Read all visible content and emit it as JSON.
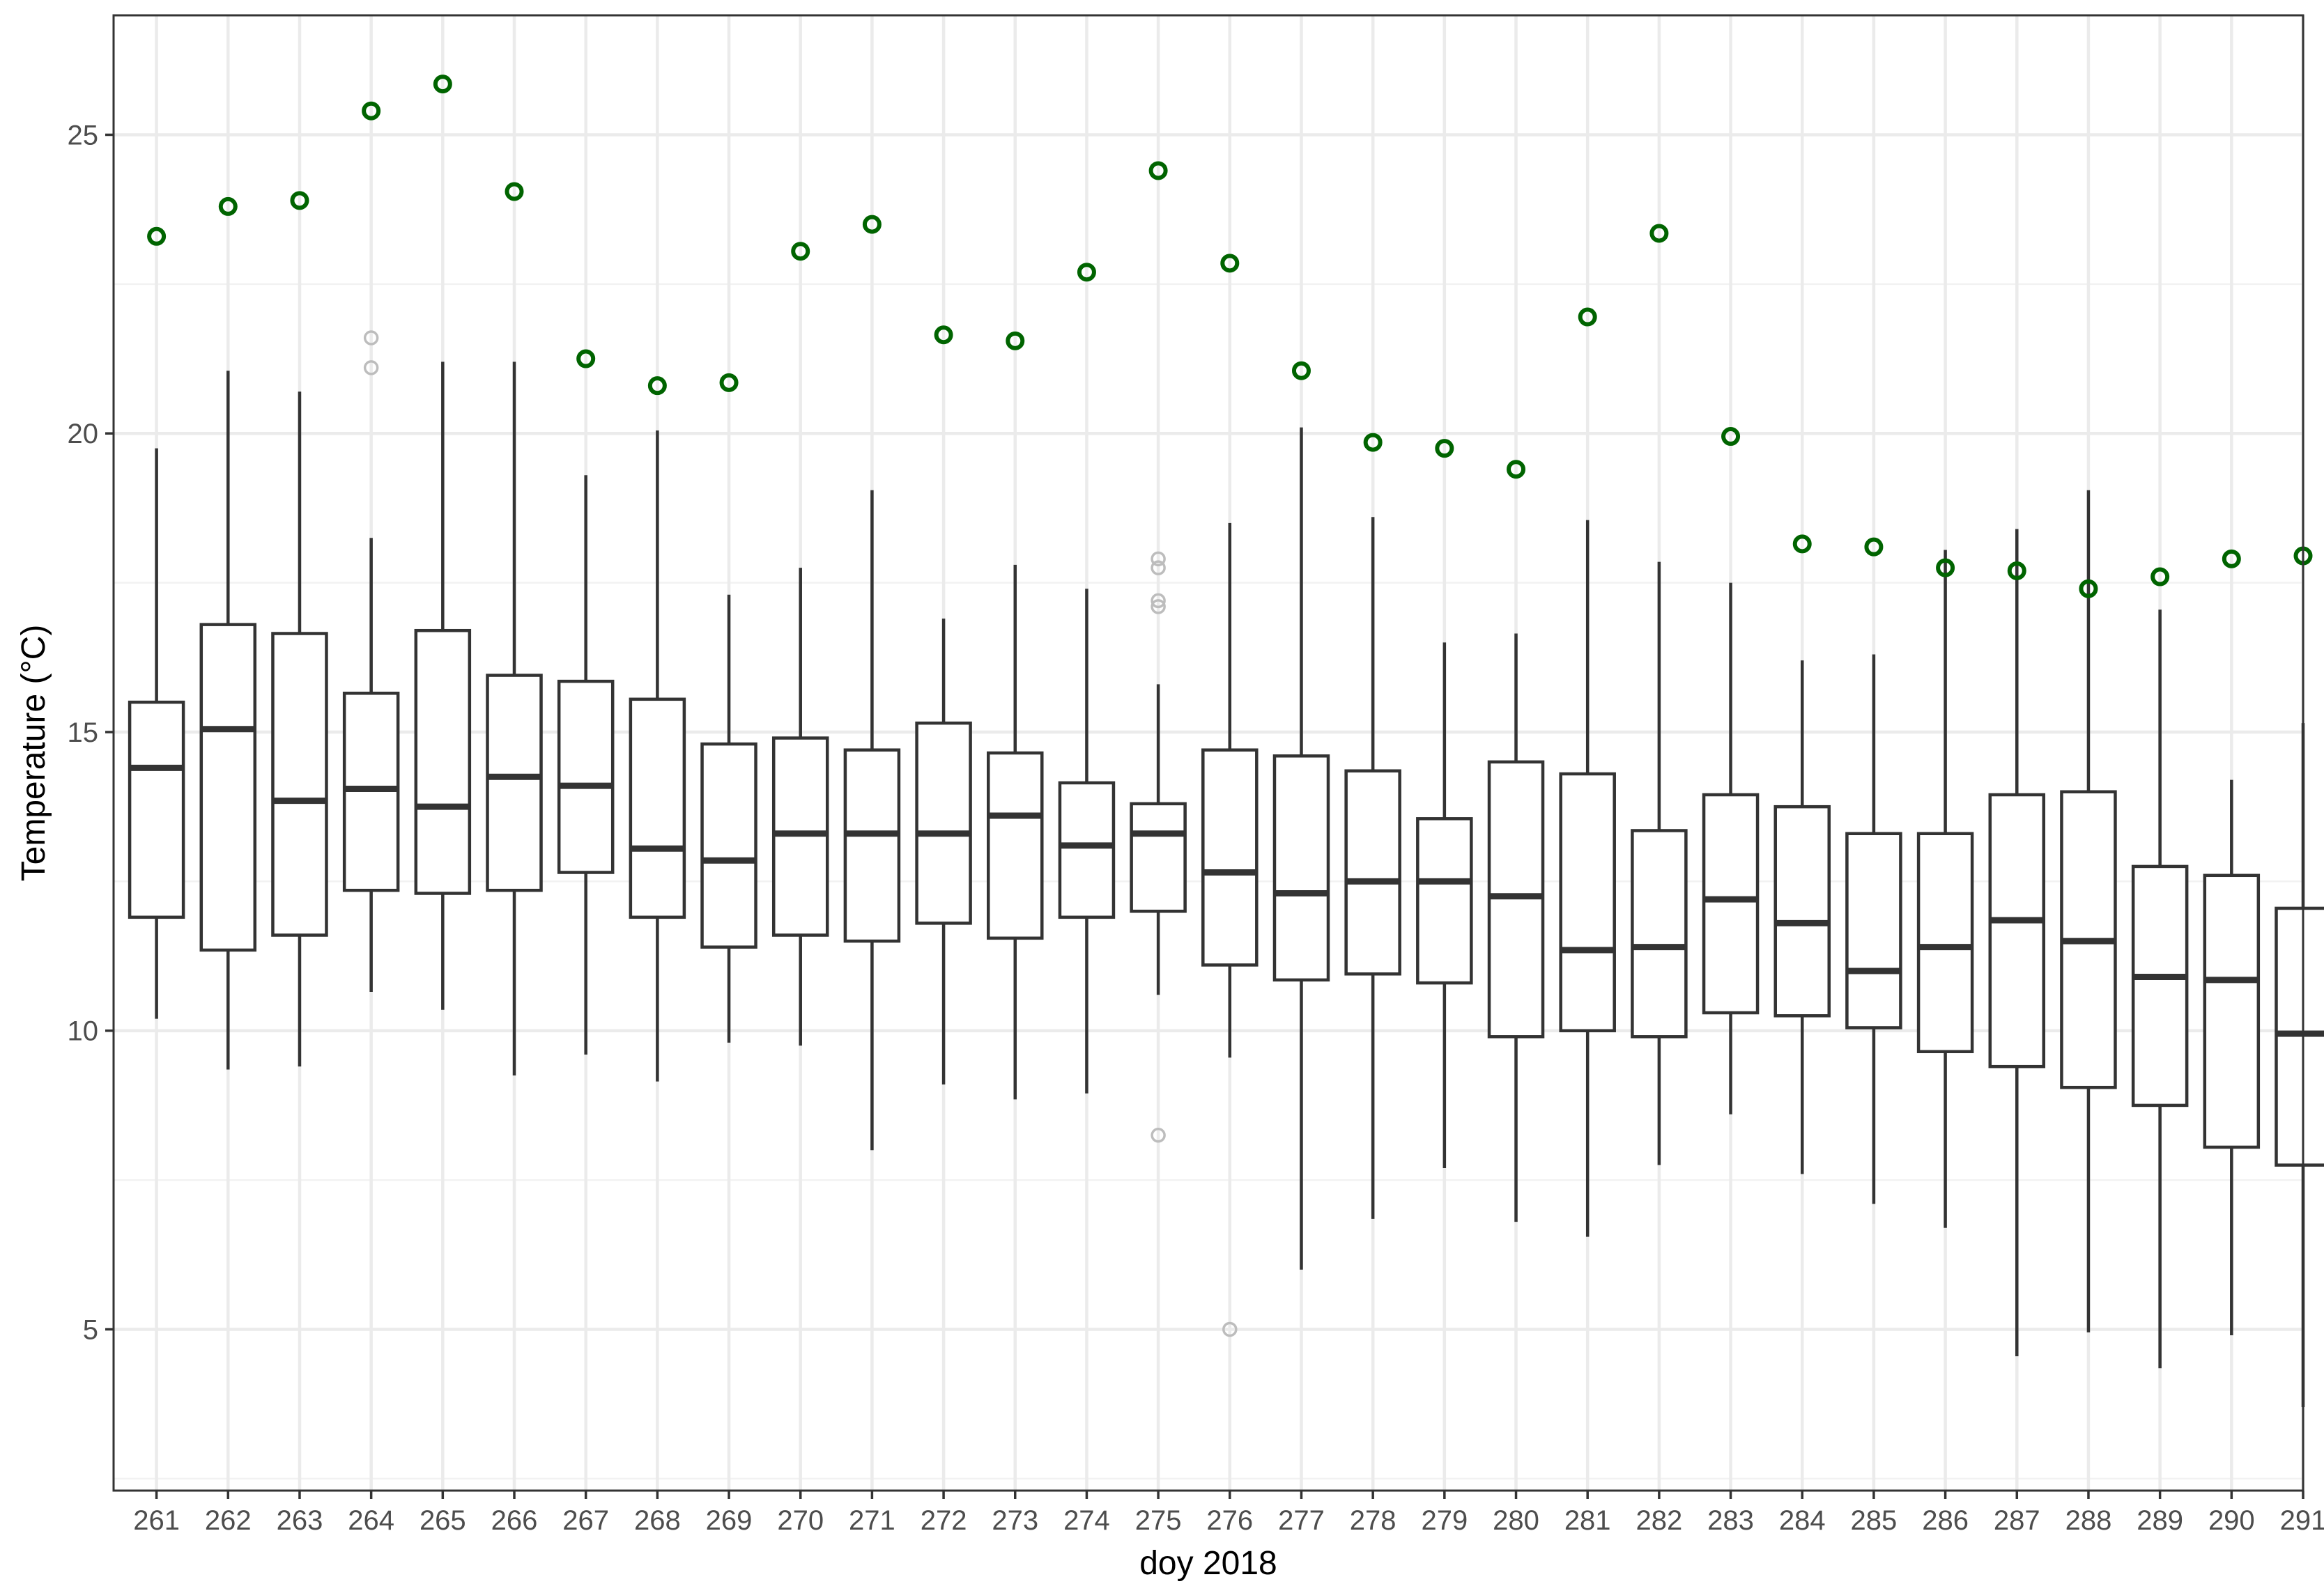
{
  "chart_data": {
    "type": "boxplot",
    "xlabel": "doy 2018",
    "ylabel": "Temperature (°C)",
    "ylim": [
      2.3,
      27.0
    ],
    "yticks": [
      5,
      10,
      15,
      20,
      25
    ],
    "grid": true,
    "colors": {
      "box_stroke": "#333333",
      "outlier": "#bdbdbd",
      "highlight_point": "#006400",
      "grid_major": "#ebebeb",
      "grid_minor": "#f2f2f2",
      "panel_border": "#333333"
    },
    "categories": [
      "261",
      "262",
      "263",
      "264",
      "265",
      "266",
      "267",
      "268",
      "269",
      "270",
      "271",
      "272",
      "273",
      "274",
      "275",
      "276",
      "277",
      "278",
      "279",
      "280",
      "281",
      "282",
      "283",
      "284",
      "285",
      "286",
      "287",
      "288",
      "289",
      "290",
      "291"
    ],
    "boxes": [
      {
        "lower": 10.2,
        "q1": 11.9,
        "median": 14.4,
        "q3": 15.5,
        "upper": 19.75
      },
      {
        "lower": 9.35,
        "q1": 11.35,
        "median": 15.05,
        "q3": 16.8,
        "upper": 21.05
      },
      {
        "lower": 9.4,
        "q1": 11.6,
        "median": 13.85,
        "q3": 16.65,
        "upper": 20.7
      },
      {
        "lower": 10.65,
        "q1": 12.35,
        "median": 14.05,
        "q3": 15.65,
        "upper": 18.25
      },
      {
        "lower": 10.35,
        "q1": 12.3,
        "median": 13.75,
        "q3": 16.7,
        "upper": 21.2
      },
      {
        "lower": 9.25,
        "q1": 12.35,
        "median": 14.25,
        "q3": 15.95,
        "upper": 21.2
      },
      {
        "lower": 9.6,
        "q1": 12.65,
        "median": 14.1,
        "q3": 15.85,
        "upper": 19.3
      },
      {
        "lower": 9.15,
        "q1": 11.9,
        "median": 13.05,
        "q3": 15.55,
        "upper": 20.05
      },
      {
        "lower": 9.8,
        "q1": 11.4,
        "median": 12.85,
        "q3": 14.8,
        "upper": 17.3
      },
      {
        "lower": 9.75,
        "q1": 11.6,
        "median": 13.3,
        "q3": 14.9,
        "upper": 17.75
      },
      {
        "lower": 8.0,
        "q1": 11.5,
        "median": 13.3,
        "q3": 14.7,
        "upper": 19.05
      },
      {
        "lower": 9.1,
        "q1": 11.8,
        "median": 13.3,
        "q3": 15.15,
        "upper": 16.9
      },
      {
        "lower": 8.85,
        "q1": 11.55,
        "median": 13.6,
        "q3": 14.65,
        "upper": 17.8
      },
      {
        "lower": 8.95,
        "q1": 11.9,
        "median": 13.1,
        "q3": 14.15,
        "upper": 17.4
      },
      {
        "lower": 10.6,
        "q1": 12.0,
        "median": 13.3,
        "q3": 13.8,
        "upper": 15.8
      },
      {
        "lower": 9.55,
        "q1": 11.1,
        "median": 12.65,
        "q3": 14.7,
        "upper": 18.5
      },
      {
        "lower": 6.0,
        "q1": 10.85,
        "median": 12.3,
        "q3": 14.6,
        "upper": 20.1
      },
      {
        "lower": 6.85,
        "q1": 10.95,
        "median": 12.5,
        "q3": 14.35,
        "upper": 18.6
      },
      {
        "lower": 7.7,
        "q1": 10.8,
        "median": 12.5,
        "q3": 13.55,
        "upper": 16.5
      },
      {
        "lower": 6.8,
        "q1": 9.9,
        "median": 12.25,
        "q3": 14.5,
        "upper": 16.65
      },
      {
        "lower": 6.55,
        "q1": 10.0,
        "median": 11.35,
        "q3": 14.3,
        "upper": 18.55
      },
      {
        "lower": 7.75,
        "q1": 9.9,
        "median": 11.4,
        "q3": 13.35,
        "upper": 17.85
      },
      {
        "lower": 8.6,
        "q1": 10.3,
        "median": 12.2,
        "q3": 13.95,
        "upper": 17.5
      },
      {
        "lower": 7.6,
        "q1": 10.25,
        "median": 11.8,
        "q3": 13.75,
        "upper": 16.2
      },
      {
        "lower": 7.1,
        "q1": 10.05,
        "median": 11.0,
        "q3": 13.3,
        "upper": 16.3
      },
      {
        "lower": 6.7,
        "q1": 9.65,
        "median": 11.4,
        "q3": 13.3,
        "upper": 18.05
      },
      {
        "lower": 4.55,
        "q1": 9.4,
        "median": 11.85,
        "q3": 13.95,
        "upper": 18.4
      },
      {
        "lower": 4.95,
        "q1": 9.05,
        "median": 11.5,
        "q3": 14.0,
        "upper": 19.05
      },
      {
        "lower": 4.35,
        "q1": 8.75,
        "median": 10.9,
        "q3": 12.75,
        "upper": 17.05
      },
      {
        "lower": 4.9,
        "q1": 8.05,
        "median": 10.85,
        "q3": 12.6,
        "upper": 14.2
      },
      {
        "lower": 3.7,
        "q1": 7.75,
        "median": 9.95,
        "q3": 12.05,
        "upper": 15.15
      }
    ],
    "outliers": [
      {
        "category": "264",
        "value": 21.6
      },
      {
        "category": "264",
        "value": 21.1
      },
      {
        "category": "275",
        "value": 17.9
      },
      {
        "category": "275",
        "value": 17.75
      },
      {
        "category": "275",
        "value": 17.2
      },
      {
        "category": "275",
        "value": 17.1
      },
      {
        "category": "275",
        "value": 8.25
      },
      {
        "category": "276",
        "value": 5.0
      }
    ],
    "highlight_points": [
      23.3,
      23.8,
      23.9,
      25.4,
      25.85,
      24.05,
      21.25,
      20.8,
      20.85,
      23.05,
      23.5,
      21.65,
      21.55,
      22.7,
      24.4,
      22.85,
      21.05,
      19.85,
      19.75,
      19.4,
      21.95,
      23.35,
      19.95,
      18.15,
      18.1,
      17.75,
      17.7,
      17.4,
      17.6,
      17.9,
      17.95
    ]
  }
}
